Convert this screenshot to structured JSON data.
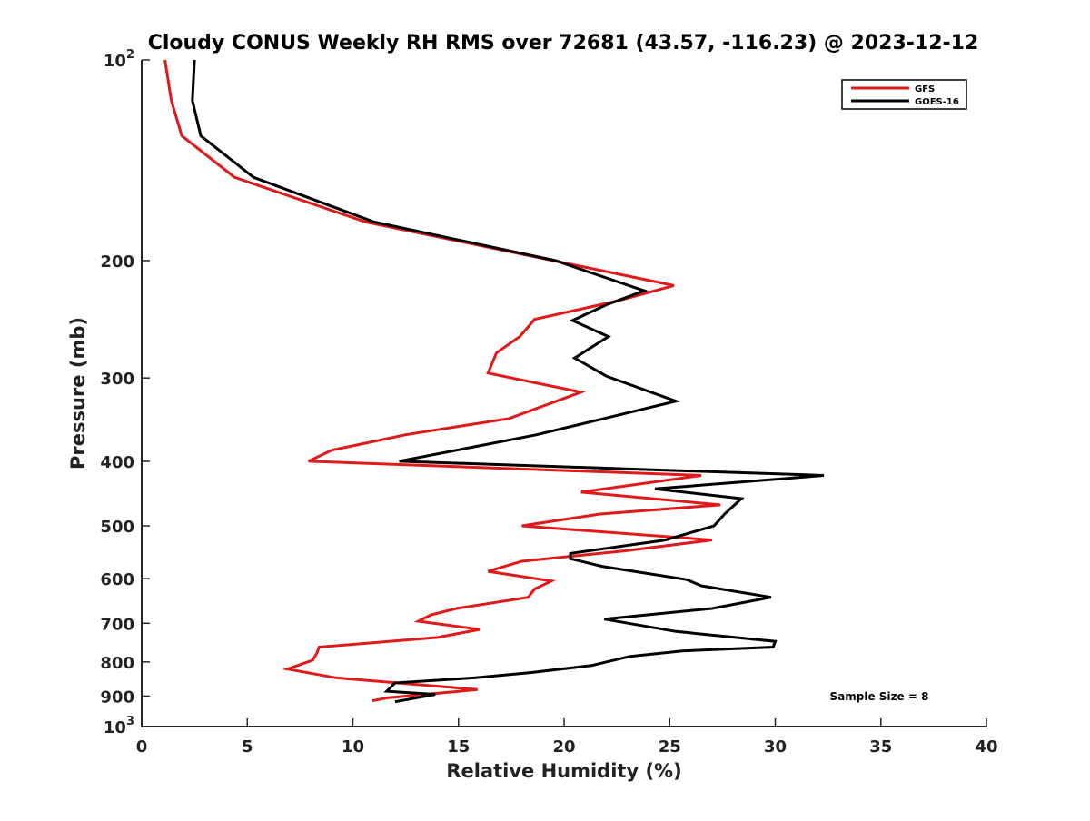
{
  "chart_data": {
    "type": "line",
    "title": "Cloudy CONUS Weekly RH RMS over 72681 (43.57, -116.23) @ 2023-12-12",
    "xlabel": "Relative Humidity (%)",
    "ylabel": "Pressure (mb)",
    "xlim": [
      0,
      40
    ],
    "ylim": [
      100,
      1000
    ],
    "y_scale": "log",
    "y_reversed": true,
    "grid": false,
    "legend_position": "top-right",
    "x_ticks": [
      "0",
      "5",
      "10",
      "15",
      "20",
      "25",
      "30",
      "35",
      "40"
    ],
    "y_ticks": [
      {
        "value": 100,
        "base": "10",
        "exp": "2"
      },
      {
        "value": 200,
        "label": "200"
      },
      {
        "value": 300,
        "label": "300"
      },
      {
        "value": 400,
        "label": "400"
      },
      {
        "value": 500,
        "label": "500"
      },
      {
        "value": 600,
        "label": "600"
      },
      {
        "value": 700,
        "label": "700"
      },
      {
        "value": 800,
        "label": "800"
      },
      {
        "value": 900,
        "label": "900"
      },
      {
        "value": 1000,
        "base": "10",
        "exp": "3"
      }
    ],
    "annotation": "Sample Size = 8",
    "series": [
      {
        "name": "GFS",
        "color": "#e0191b",
        "points": [
          [
            1.1,
            100
          ],
          [
            1.4,
            115
          ],
          [
            1.9,
            130
          ],
          [
            4.4,
            150
          ],
          [
            10.6,
            175
          ],
          [
            19.5,
            200
          ],
          [
            25.2,
            218
          ],
          [
            22.5,
            230
          ],
          [
            18.6,
            245
          ],
          [
            17.9,
            260
          ],
          [
            16.8,
            275
          ],
          [
            16.4,
            295
          ],
          [
            20.8,
            315
          ],
          [
            17.4,
            345
          ],
          [
            12.5,
            365
          ],
          [
            9.0,
            385
          ],
          [
            7.9,
            400
          ],
          [
            26.5,
            420
          ],
          [
            20.8,
            445
          ],
          [
            27.4,
            465
          ],
          [
            21.7,
            480
          ],
          [
            18.0,
            500
          ],
          [
            27.0,
            525
          ],
          [
            22.9,
            545
          ],
          [
            18.0,
            565
          ],
          [
            16.4,
            585
          ],
          [
            19.4,
            605
          ],
          [
            18.6,
            622
          ],
          [
            18.3,
            640
          ],
          [
            14.9,
            665
          ],
          [
            13.7,
            680
          ],
          [
            13.1,
            695
          ],
          [
            16.0,
            715
          ],
          [
            14.0,
            735
          ],
          [
            8.4,
            760
          ],
          [
            8.3,
            775
          ],
          [
            8.1,
            795
          ],
          [
            6.9,
            820
          ],
          [
            9.2,
            845
          ],
          [
            15.9,
            880
          ],
          [
            11.7,
            905
          ],
          [
            10.9,
            915
          ]
        ]
      },
      {
        "name": "GOES-16",
        "color": "#000000",
        "points": [
          [
            2.5,
            100
          ],
          [
            2.4,
            115
          ],
          [
            2.8,
            130
          ],
          [
            5.3,
            150
          ],
          [
            11.0,
            175
          ],
          [
            19.6,
            200
          ],
          [
            23.8,
            222
          ],
          [
            22.0,
            233
          ],
          [
            20.4,
            246
          ],
          [
            22.1,
            260
          ],
          [
            20.5,
            280
          ],
          [
            22.0,
            298
          ],
          [
            25.3,
            325
          ],
          [
            21.9,
            345
          ],
          [
            18.7,
            365
          ],
          [
            12.2,
            400
          ],
          [
            32.3,
            420
          ],
          [
            24.3,
            440
          ],
          [
            28.4,
            455
          ],
          [
            27.6,
            480
          ],
          [
            27.1,
            500
          ],
          [
            24.8,
            525
          ],
          [
            20.3,
            550
          ],
          [
            20.3,
            560
          ],
          [
            21.8,
            575
          ],
          [
            25.8,
            602
          ],
          [
            26.5,
            615
          ],
          [
            29.8,
            640
          ],
          [
            27.0,
            665
          ],
          [
            21.9,
            690
          ],
          [
            25.3,
            720
          ],
          [
            30.0,
            745
          ],
          [
            29.9,
            760
          ],
          [
            25.6,
            770
          ],
          [
            23.1,
            785
          ],
          [
            21.3,
            810
          ],
          [
            18.4,
            830
          ],
          [
            15.8,
            845
          ],
          [
            12.0,
            860
          ],
          [
            11.6,
            885
          ],
          [
            13.9,
            895
          ],
          [
            12.0,
            918
          ]
        ]
      }
    ]
  }
}
